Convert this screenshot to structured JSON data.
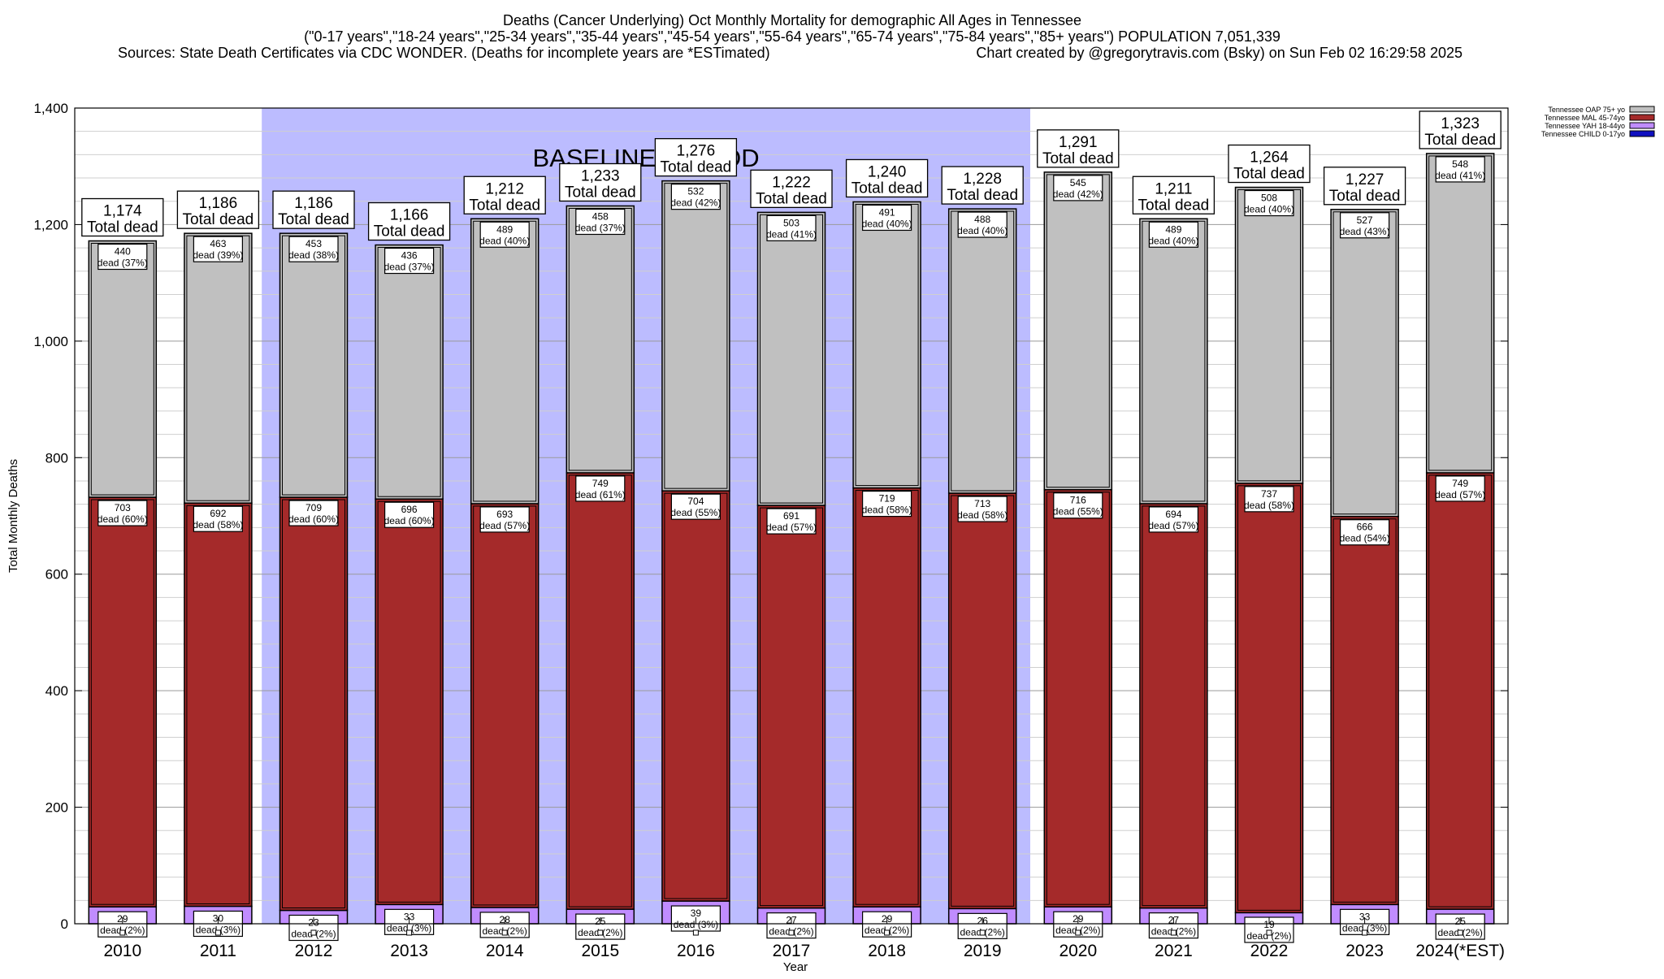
{
  "header": {
    "line1": "Deaths (Cancer Underlying) Oct Monthly Mortality for demographic All Ages in Tennessee",
    "line2": "(\"0-17 years\",\"18-24 years\",\"25-34 years\",\"35-44 years\",\"45-54 years\",\"55-64 years\",\"65-74 years\",\"75-84 years\",\"85+ years\") POPULATION 7,051,339",
    "line3_left": "Sources: State Death Certificates via CDC WONDER. (Deaths for incomplete years are *ESTimated)",
    "line3_right": "Chart created by @gregorytravis.com (Bsky) on Sun Feb 02 16:29:58 2025"
  },
  "chart_data": {
    "type": "bar",
    "stacked": true,
    "categories": [
      "2010",
      "2011",
      "2012",
      "2013",
      "2014",
      "2015",
      "2016",
      "2017",
      "2018",
      "2019",
      "2020",
      "2021",
      "2022",
      "2023",
      "2024(*EST)"
    ],
    "series": [
      {
        "name": "Tennessee CHILD 0-17yo",
        "color": "#1010c0",
        "values": [
          0,
          0,
          0,
          0,
          0,
          0,
          0,
          0,
          0,
          0,
          0,
          0,
          0,
          0,
          0
        ],
        "pct": [
          "0%",
          "0%",
          "0%",
          "0%",
          "0%",
          "0%",
          "0%",
          "0%",
          "0%",
          "0%",
          "0%",
          "0%",
          "0%",
          "0%",
          "0%"
        ]
      },
      {
        "name": "Tennessee YAH 18-44yo",
        "color": "#c08cff",
        "values": [
          29,
          30,
          23,
          33,
          28,
          25,
          39,
          27,
          29,
          26,
          29,
          27,
          19,
          33,
          25
        ],
        "pct": [
          "2%",
          "3%",
          "2%",
          "3%",
          "2%",
          "2%",
          "3%",
          "2%",
          "2%",
          "2%",
          "2%",
          "2%",
          "2%",
          "3%",
          "2%"
        ]
      },
      {
        "name": "Tennessee MAL 45-74yo",
        "color": "#a52a2a",
        "values": [
          703,
          692,
          709,
          696,
          693,
          749,
          704,
          691,
          719,
          713,
          716,
          694,
          737,
          666,
          749
        ],
        "pct": [
          "60%",
          "58%",
          "60%",
          "60%",
          "57%",
          "61%",
          "55%",
          "57%",
          "58%",
          "58%",
          "55%",
          "57%",
          "58%",
          "54%",
          "57%"
        ]
      },
      {
        "name": "Tennessee OAP 75+ yo",
        "color": "#c0c0c0",
        "values": [
          440,
          463,
          453,
          436,
          489,
          458,
          532,
          503,
          491,
          488,
          545,
          489,
          508,
          527,
          548
        ],
        "pct": [
          "37%",
          "39%",
          "38%",
          "37%",
          "40%",
          "37%",
          "42%",
          "41%",
          "40%",
          "40%",
          "42%",
          "40%",
          "40%",
          "43%",
          "41%"
        ]
      }
    ],
    "totals": [
      1174,
      1186,
      1186,
      1166,
      1212,
      1233,
      1276,
      1222,
      1240,
      1228,
      1291,
      1211,
      1264,
      1227,
      1323
    ],
    "total_labels": [
      "1,174",
      "1,186",
      "1,186",
      "1,166",
      "1,212",
      "1,233",
      "1,276",
      "1,222",
      "1,240",
      "1,228",
      "1,291",
      "1,211",
      "1,264",
      "1,227",
      "1,323"
    ],
    "value_labels": {
      "YAH": [
        "29",
        "30",
        "23",
        "33",
        "28",
        "25",
        "39",
        "27",
        "29",
        "26",
        "29",
        "27",
        "19",
        "33",
        "25"
      ],
      "MAL": [
        "703",
        "692",
        "709",
        "696",
        "693",
        "749",
        "704",
        "691",
        "719",
        "713",
        "716",
        "694",
        "737",
        "666",
        "749"
      ],
      "OAP": [
        "440",
        "463",
        "453",
        "436",
        "489",
        "458",
        "532",
        "503",
        "491",
        "488",
        "545",
        "489",
        "508",
        "527",
        "548"
      ]
    },
    "total_suffix": "Total dead",
    "dead_word": "dead",
    "ylabel": "Total Monthly Deaths",
    "xlabel": "Year",
    "ylim": [
      0,
      1400
    ],
    "yticks": [
      0,
      200,
      400,
      600,
      800,
      1000,
      1200,
      1400
    ],
    "ytick_labels": [
      "0",
      "200",
      "400",
      "600",
      "800",
      "1,000",
      "1,200",
      "1,400"
    ],
    "baseline": {
      "label": "BASELINE PERIOD",
      "from": "2012",
      "to": "2019",
      "color": "#bcbcff"
    },
    "grid": true,
    "legend_position": "top-right, outside plot"
  }
}
